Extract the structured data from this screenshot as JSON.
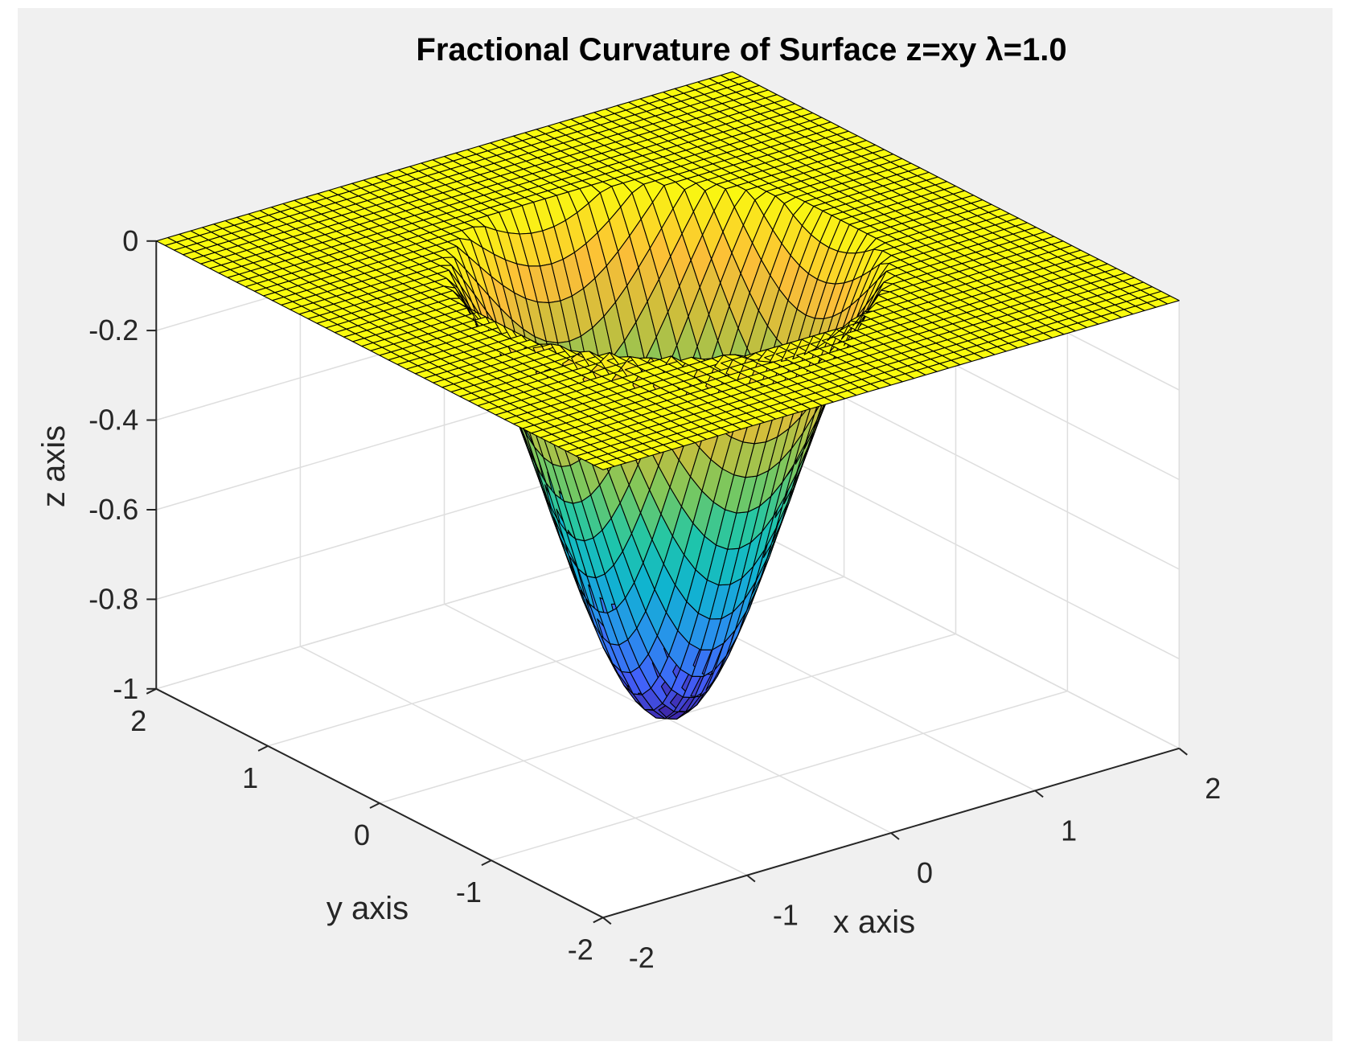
{
  "chart_data": {
    "type": "surface",
    "title": "Fractional Curvature of Surface z=xy   λ=1.0",
    "xlabel": "x axis",
    "ylabel": "y axis",
    "zlabel": "z axis",
    "xlim": [
      -2,
      2
    ],
    "ylim": [
      -2,
      2
    ],
    "zlim": [
      -1,
      0
    ],
    "xticks": [
      "-2",
      "-1",
      "0",
      "1",
      "2"
    ],
    "yticks": [
      "-2",
      "-1",
      "0",
      "1",
      "2"
    ],
    "zticks": [
      "-1",
      "-0.8",
      "-0.6",
      "-0.4",
      "-0.2",
      "0"
    ],
    "grid": true,
    "colormap": "parula",
    "mesh": {
      "n": 51
    },
    "surface_formula": "z = -(1 - (x^2+y^2)/1.44) * exp(-(x^2+y^2)/1.44) clipped to [-1,0]",
    "z_min": -1.0,
    "z_max": 0.0
  },
  "colors": {
    "figure_bg": "#f0f0f0",
    "axes_bg": "#ffffff",
    "grid": "#dedede",
    "edge": "#000000"
  }
}
